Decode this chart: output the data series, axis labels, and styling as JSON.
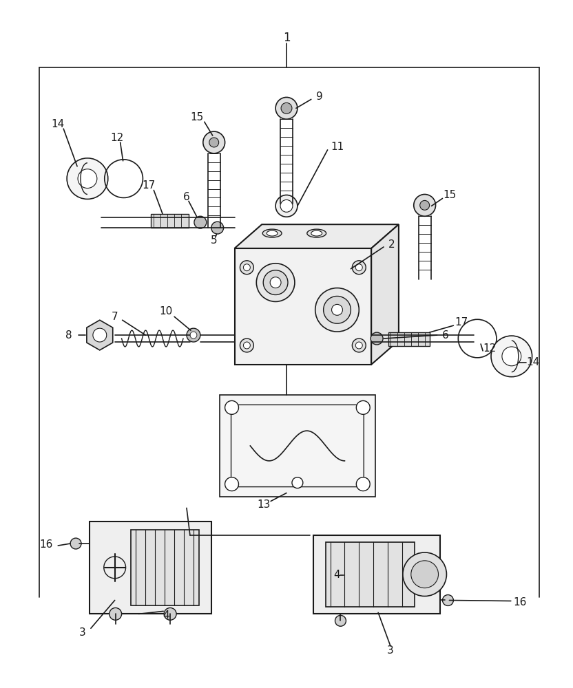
{
  "bg_color": "#ffffff",
  "line_color": "#1a1a1a",
  "figsize": [
    8.32,
    10.0
  ],
  "dpi": 100
}
